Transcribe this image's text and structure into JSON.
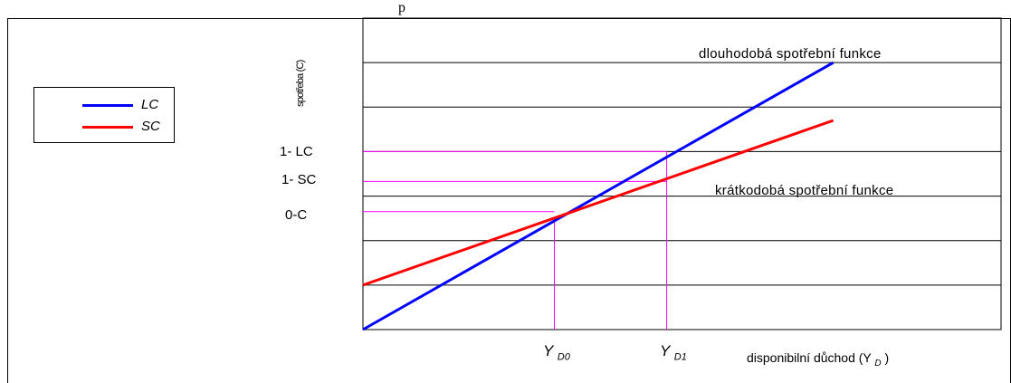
{
  "top_text": "p",
  "chart_data": {
    "type": "line",
    "ylabel": "spotřeba (C)",
    "xlabel": "disponibilní důchod (Y",
    "xlabel_sub": "D",
    "xlabel_end": ")",
    "xlim": [
      0,
      10
    ],
    "ylim": [
      0,
      7
    ],
    "grid": true,
    "legend_position": "left",
    "series": [
      {
        "name": "LC",
        "color": "#0000ff",
        "x": [
          0,
          7.37
        ],
        "y": [
          0,
          6.0
        ]
      },
      {
        "name": "SC",
        "color": "#ff0000",
        "x": [
          0,
          7.37
        ],
        "y": [
          1.0,
          4.7
        ]
      }
    ],
    "y_tick_labels": [
      {
        "label": "1- LC",
        "y": 4.0
      },
      {
        "label": "1- SC",
        "y": 3.33
      },
      {
        "label": "0-C",
        "y": 2.65
      }
    ],
    "x_markers": [
      {
        "label": "Y",
        "sub": "D0",
        "x": 3.0,
        "y_lc": 2.45
      },
      {
        "label": "Y",
        "sub": "D1",
        "x": 4.76,
        "y_lc": 4.0,
        "y_sc": 3.33
      }
    ],
    "annotations": [
      {
        "text": "dlouhodobá spotřební funkce",
        "target": "LC"
      },
      {
        "text": "krátkodobá spotřební funkce",
        "target": "SC"
      }
    ],
    "guide_color": "#ff00ff"
  }
}
